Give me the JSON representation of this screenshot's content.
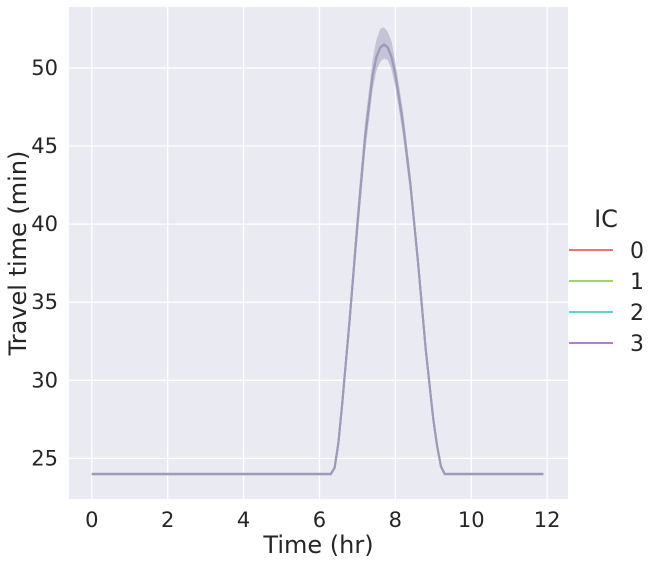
{
  "chart_data": {
    "type": "line",
    "xlabel": "Time (hr)",
    "ylabel": "Travel time (min)",
    "xlim": [
      -0.6,
      12.55
    ],
    "ylim": [
      22.4,
      53.9
    ],
    "xticks": [
      0,
      2,
      4,
      6,
      8,
      10,
      12
    ],
    "yticks": [
      25,
      30,
      35,
      40,
      45,
      50
    ],
    "grid": true,
    "legend": {
      "title": "IC",
      "placement": "right",
      "entries": [
        {
          "label": "0",
          "color": "#e8776e"
        },
        {
          "label": "1",
          "color": "#a3d65a"
        },
        {
          "label": "2",
          "color": "#5fd3d0"
        },
        {
          "label": "3",
          "color": "#b07ed6"
        }
      ]
    },
    "band_color": "#a6a3c3",
    "line_color": "#9d9ab8",
    "x": [
      0,
      0.5,
      1,
      2,
      3,
      4,
      5,
      6,
      6.3,
      6.4,
      6.5,
      6.6,
      6.8,
      7.0,
      7.2,
      7.4,
      7.5,
      7.6,
      7.7,
      7.8,
      7.9,
      8.0,
      8.2,
      8.4,
      8.6,
      8.8,
      9.0,
      9.1,
      9.2,
      9.3,
      9.5,
      10,
      11,
      11.9
    ],
    "y": [
      24,
      24,
      24,
      24,
      24,
      24,
      24,
      24,
      24,
      24.4,
      26.0,
      28.5,
      34.0,
      40.0,
      45.5,
      49.5,
      50.7,
      51.3,
      51.5,
      51.3,
      50.7,
      49.6,
      46.5,
      42.5,
      37.5,
      32.0,
      27.5,
      25.8,
      24.5,
      24.0,
      24,
      24,
      24,
      24
    ],
    "y_upper": [
      24,
      24,
      24,
      24,
      24,
      24,
      24,
      24,
      24,
      24.5,
      26.3,
      29.0,
      34.8,
      41.0,
      46.5,
      50.5,
      51.8,
      52.5,
      52.6,
      52.3,
      51.7,
      50.4,
      47.3,
      43.2,
      38.2,
      32.6,
      28.0,
      26.2,
      24.7,
      24.0,
      24,
      24,
      24,
      24
    ],
    "y_lower": [
      24,
      24,
      24,
      24,
      24,
      24,
      24,
      24,
      24,
      24.3,
      25.7,
      28.0,
      33.2,
      39.0,
      44.5,
      48.6,
      49.8,
      50.4,
      50.6,
      50.5,
      49.9,
      48.8,
      45.7,
      41.8,
      36.8,
      31.4,
      27.0,
      25.4,
      24.3,
      24.0,
      24,
      24,
      24,
      24
    ]
  }
}
